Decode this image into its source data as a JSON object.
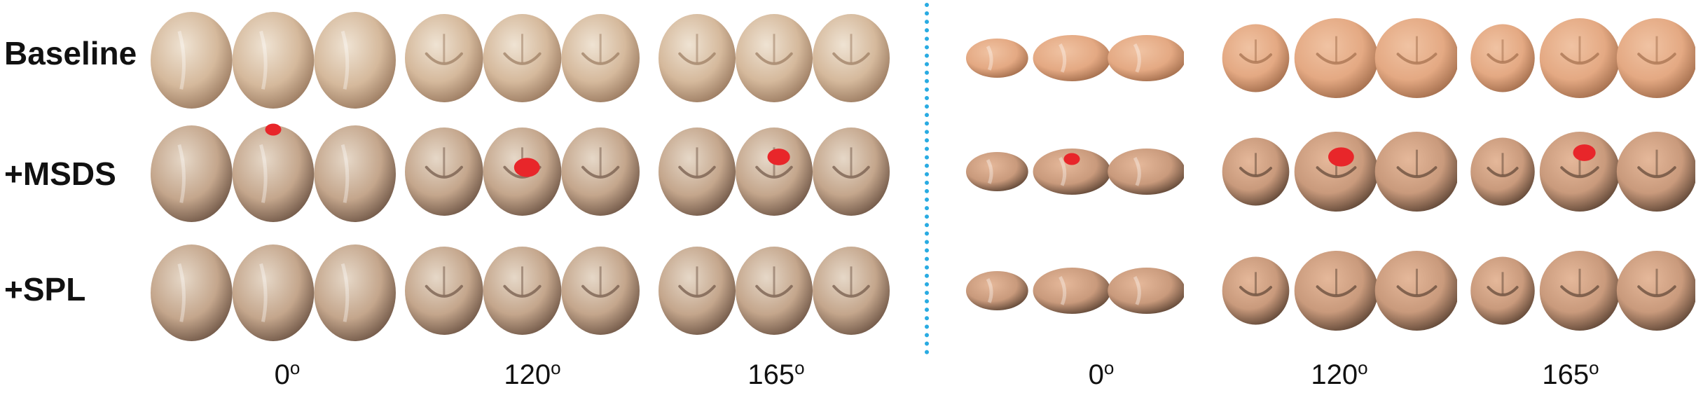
{
  "rows": [
    {
      "label": "Baseline"
    },
    {
      "label": "+MSDS"
    },
    {
      "label": "+SPL"
    }
  ],
  "panels": [
    {
      "angles": [
        {
          "value": "0",
          "sup": "o"
        },
        {
          "value": "120",
          "sup": "o"
        },
        {
          "value": "165",
          "sup": "o"
        }
      ]
    },
    {
      "angles": [
        {
          "value": "0",
          "sup": "o"
        },
        {
          "value": "120",
          "sup": "o"
        },
        {
          "value": "165",
          "sup": "o"
        }
      ]
    }
  ],
  "colors": {
    "divider": "#29abe2",
    "highlight": "#e8262a",
    "tooth_light": "#e3d1bd",
    "tooth_mid": "#c9a78a",
    "tooth_dark": "#6f5646",
    "tooth_peach": "#e4a983"
  }
}
